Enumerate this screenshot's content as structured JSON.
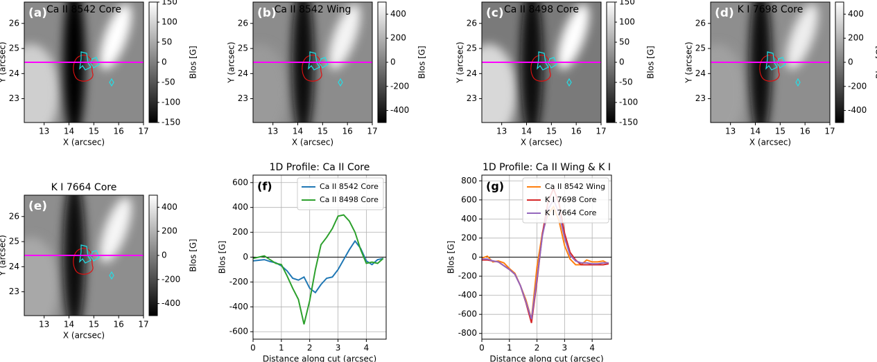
{
  "chart_data": [
    {
      "type": "image",
      "title": "Ca II 8542 Core",
      "panel_label": "(a)",
      "xlabel": "X (arcsec)",
      "ylabel": "Y (arcsec)",
      "xlim": [
        12.2,
        17
      ],
      "xticks": [
        13,
        14,
        15,
        16,
        17
      ],
      "ylim": [
        22.05,
        26.85
      ],
      "yticks": [
        23,
        24,
        25,
        26
      ],
      "cut_y": 24.45,
      "colorbar": {
        "label": "Blos [G]",
        "lim": [
          -150,
          150
        ],
        "ticks": [
          -150,
          -100,
          -50,
          0,
          50,
          100,
          150
        ]
      }
    },
    {
      "type": "image",
      "title": "Ca II 8542 Wing",
      "panel_label": "(b)",
      "xlabel": "X (arcsec)",
      "ylabel": "Y (arcsec)",
      "xlim": [
        12.2,
        17
      ],
      "xticks": [
        13,
        14,
        15,
        16,
        17
      ],
      "ylim": [
        22.05,
        26.85
      ],
      "yticks": [
        23,
        24,
        25,
        26
      ],
      "cut_y": 24.45,
      "colorbar": {
        "label": "Blos [G]",
        "lim": [
          -500,
          500
        ],
        "ticks": [
          -400,
          -200,
          0,
          200,
          400
        ]
      }
    },
    {
      "type": "image",
      "title": "Ca II 8498 Core",
      "panel_label": "(c)",
      "xlabel": "X (arcsec)",
      "ylabel": "Y (arcsec)",
      "xlim": [
        12.2,
        17
      ],
      "xticks": [
        13,
        14,
        15,
        16,
        17
      ],
      "ylim": [
        22.05,
        26.85
      ],
      "yticks": [
        23,
        24,
        25,
        26
      ],
      "cut_y": 24.45,
      "colorbar": {
        "label": "Blos [G]",
        "lim": [
          -150,
          150
        ],
        "ticks": [
          -150,
          -100,
          -50,
          0,
          50,
          100,
          150
        ]
      }
    },
    {
      "type": "image",
      "title": "K I 7698 Core",
      "panel_label": "(d)",
      "xlabel": "X (arcsec)",
      "ylabel": "Y (arcsec)",
      "xlim": [
        12.2,
        17
      ],
      "xticks": [
        13,
        14,
        15,
        16,
        17
      ],
      "ylim": [
        22.05,
        26.85
      ],
      "yticks": [
        23,
        24,
        25,
        26
      ],
      "cut_y": 24.45,
      "colorbar": {
        "label": "Blos [G]",
        "lim": [
          -500,
          500
        ],
        "ticks": [
          -400,
          -200,
          0,
          200,
          400
        ]
      }
    },
    {
      "type": "image",
      "title": "K I 7664 Core",
      "panel_label": "(e)",
      "xlabel": "X (arcsec)",
      "ylabel": "Y (arcsec)",
      "xlim": [
        12.2,
        17
      ],
      "xticks": [
        13,
        14,
        15,
        16,
        17
      ],
      "ylim": [
        22.05,
        26.85
      ],
      "yticks": [
        23,
        24,
        25,
        26
      ],
      "cut_y": 24.45,
      "colorbar": {
        "label": "Blos [G]",
        "lim": [
          -500,
          500
        ],
        "ticks": [
          -400,
          -200,
          0,
          200,
          400
        ]
      }
    },
    {
      "type": "line",
      "title": "1D Profile: Ca II Core",
      "panel_label": "(f)",
      "xlabel": "Distance along cut (arcsec)",
      "ylabel": "Blos [G]",
      "xlim": [
        0,
        4.7
      ],
      "xticks": [
        0,
        1,
        2,
        3,
        4
      ],
      "ylim": [
        -660,
        660
      ],
      "yticks": [
        -600,
        -400,
        -200,
        0,
        200,
        400,
        600
      ],
      "hline": 0,
      "grid": true,
      "legend": "upper right",
      "x": [
        0,
        0.2,
        0.4,
        0.6,
        0.8,
        1.0,
        1.2,
        1.4,
        1.6,
        1.8,
        2.0,
        2.2,
        2.4,
        2.6,
        2.8,
        3.0,
        3.2,
        3.4,
        3.6,
        3.8,
        4.0,
        4.2,
        4.4,
        4.6
      ],
      "series": [
        {
          "name": "Ca II 8542 Core",
          "color": "#1f77b4",
          "values": [
            -30,
            -25,
            -20,
            -35,
            -45,
            -70,
            -110,
            -170,
            -185,
            -160,
            -250,
            -285,
            -220,
            -170,
            -160,
            -100,
            -20,
            60,
            130,
            70,
            -30,
            -60,
            -20,
            -10
          ]
        },
        {
          "name": "Ca II 8498 Core",
          "color": "#2ca02c",
          "values": [
            -10,
            0,
            10,
            -20,
            -50,
            -60,
            -150,
            -250,
            -340,
            -540,
            -350,
            -100,
            100,
            160,
            230,
            330,
            340,
            290,
            200,
            60,
            -50,
            -40,
            -50,
            -10
          ]
        }
      ]
    },
    {
      "type": "line",
      "title": "1D Profile: Ca II Wing & K I",
      "panel_label": "(g)",
      "xlabel": "Distance along cut (arcsec)",
      "ylabel": "Blos [G]",
      "xlim": [
        0,
        4.7
      ],
      "xticks": [
        0,
        1,
        2,
        3,
        4
      ],
      "ylim": [
        -860,
        860
      ],
      "yticks": [
        -800,
        -600,
        -400,
        -200,
        0,
        200,
        400,
        600,
        800
      ],
      "hline": 0,
      "grid": true,
      "legend": "upper right",
      "x": [
        0,
        0.2,
        0.4,
        0.6,
        0.8,
        1.0,
        1.2,
        1.4,
        1.6,
        1.8,
        2.0,
        2.2,
        2.4,
        2.6,
        2.8,
        3.0,
        3.2,
        3.4,
        3.6,
        3.8,
        4.0,
        4.2,
        4.4,
        4.6
      ],
      "series": [
        {
          "name": "Ca II 8542 Wing",
          "color": "#ff7f0e",
          "values": [
            -10,
            10,
            -50,
            -40,
            -60,
            -120,
            -170,
            -300,
            -450,
            -650,
            -100,
            260,
            450,
            530,
            380,
            120,
            -20,
            -80,
            -80,
            -30,
            -50,
            -50,
            -40,
            -70
          ]
        },
        {
          "name": "K I 7698 Core",
          "color": "#d62728",
          "values": [
            -30,
            -30,
            -40,
            -50,
            -90,
            -130,
            -180,
            -300,
            -480,
            -690,
            -250,
            250,
            580,
            720,
            560,
            250,
            50,
            -30,
            -80,
            -80,
            -80,
            -80,
            -80,
            -70
          ]
        },
        {
          "name": "K I 7664 Core",
          "color": "#9467bd",
          "values": [
            -20,
            -20,
            -40,
            -50,
            -90,
            -130,
            -180,
            -300,
            -470,
            -650,
            -220,
            230,
            500,
            600,
            460,
            200,
            20,
            -40,
            -60,
            -60,
            -70,
            -70,
            -60,
            -60
          ]
        }
      ]
    }
  ]
}
